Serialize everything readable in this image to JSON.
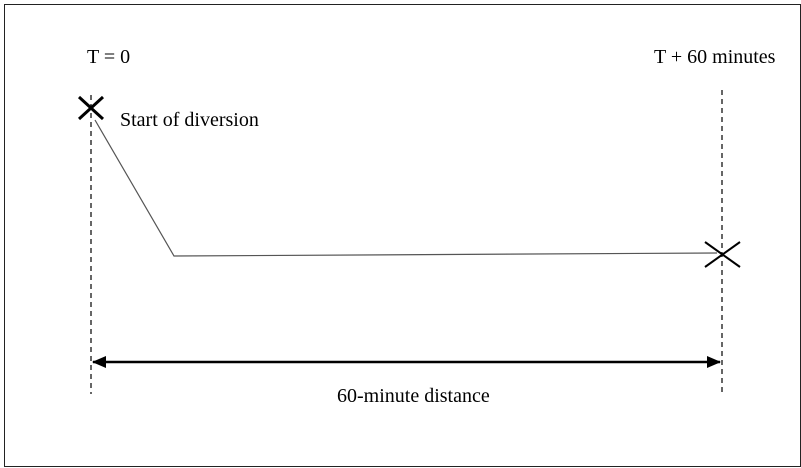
{
  "diagram": {
    "labels": {
      "start_time": "T = 0",
      "end_time": "T + 60 minutes",
      "start_event": "Start of diversion",
      "distance": "60-minute distance"
    },
    "colors": {
      "border": "#222222",
      "line": "#555555",
      "ink": "#000000"
    }
  }
}
